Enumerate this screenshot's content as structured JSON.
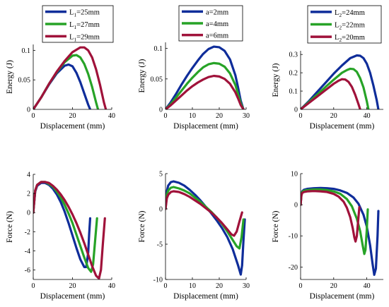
{
  "colors": {
    "blue": "#0f2d9a",
    "green": "#27a327",
    "red": "#a0123a"
  },
  "chart_data": [
    {
      "type": "line",
      "xlabel": "Displacement (mm)",
      "ylabel": "Energy (J)",
      "xlim": [
        0,
        40
      ],
      "ylim": [
        0,
        0.11
      ],
      "xticks": [
        0,
        20,
        40
      ],
      "yticks": [
        0,
        0.05,
        0.1
      ],
      "xtick_labels": [
        "0",
        "20",
        "40"
      ],
      "ytick_labels": [
        "0",
        "0.05",
        "0.1"
      ],
      "legend_position": "top",
      "series": [
        {
          "name": "L1=25mm",
          "legend": {
            "base": "L",
            "sub": "1",
            "rest": "=25mm"
          },
          "color": "blue",
          "x": [
            0,
            4,
            8,
            12,
            16,
            18,
            20,
            22,
            24,
            26,
            28,
            29
          ],
          "y": [
            0,
            0.02,
            0.042,
            0.061,
            0.074,
            0.076,
            0.073,
            0.062,
            0.046,
            0.027,
            0.008,
            0
          ]
        },
        {
          "name": "L1=27mm",
          "legend": {
            "base": "L",
            "sub": "1",
            "rest": "=27mm"
          },
          "color": "green",
          "x": [
            0,
            4,
            8,
            12,
            16,
            20,
            22,
            24,
            26,
            28,
            30,
            32,
            33
          ],
          "y": [
            0,
            0.02,
            0.043,
            0.063,
            0.08,
            0.091,
            0.092,
            0.088,
            0.077,
            0.06,
            0.038,
            0.012,
            0
          ]
        },
        {
          "name": "L1=29mm",
          "legend": {
            "base": "L",
            "sub": "1",
            "rest": "=29mm"
          },
          "color": "red",
          "x": [
            0,
            4,
            8,
            12,
            16,
            20,
            24,
            26,
            28,
            30,
            32,
            34,
            36,
            37
          ],
          "y": [
            0,
            0.02,
            0.043,
            0.064,
            0.082,
            0.097,
            0.105,
            0.105,
            0.1,
            0.088,
            0.068,
            0.042,
            0.012,
            0
          ]
        }
      ]
    },
    {
      "type": "line",
      "xlabel": "Displacement (mm)",
      "ylabel": "Energy (J)",
      "xlim": [
        0,
        30
      ],
      "ylim": [
        0,
        0.11
      ],
      "xticks": [
        0,
        10,
        20,
        30
      ],
      "yticks": [
        0,
        0.05,
        0.1
      ],
      "xtick_labels": [
        "0",
        "10",
        "20",
        "30"
      ],
      "ytick_labels": [
        "0",
        "0.05",
        "0.1"
      ],
      "legend_position": "top",
      "series": [
        {
          "name": "a=2mm",
          "legend": {
            "base": "a=2mm",
            "sub": "",
            "rest": ""
          },
          "color": "blue",
          "x": [
            0,
            2,
            4,
            6,
            8,
            10,
            12,
            14,
            16,
            18,
            20,
            22,
            24,
            26,
            27,
            28,
            29
          ],
          "y": [
            0,
            0.012,
            0.026,
            0.041,
            0.055,
            0.068,
            0.08,
            0.091,
            0.099,
            0.103,
            0.102,
            0.096,
            0.082,
            0.056,
            0.036,
            0.014,
            0
          ]
        },
        {
          "name": "a=4mm",
          "legend": {
            "base": "a=4mm",
            "sub": "",
            "rest": ""
          },
          "color": "green",
          "x": [
            0,
            2,
            4,
            6,
            8,
            10,
            12,
            14,
            16,
            18,
            20,
            22,
            24,
            26,
            27,
            28,
            29
          ],
          "y": [
            0,
            0.009,
            0.02,
            0.031,
            0.042,
            0.052,
            0.061,
            0.069,
            0.074,
            0.076,
            0.075,
            0.07,
            0.059,
            0.04,
            0.025,
            0.01,
            0
          ]
        },
        {
          "name": "a=6mm",
          "legend": {
            "base": "a=6mm",
            "sub": "",
            "rest": ""
          },
          "color": "red",
          "x": [
            0,
            2,
            4,
            6,
            8,
            10,
            12,
            14,
            16,
            18,
            20,
            22,
            24,
            26,
            27,
            28,
            29
          ],
          "y": [
            0,
            0.007,
            0.015,
            0.023,
            0.031,
            0.038,
            0.044,
            0.049,
            0.053,
            0.055,
            0.054,
            0.05,
            0.042,
            0.028,
            0.018,
            0.007,
            0
          ]
        }
      ]
    },
    {
      "type": "line",
      "xlabel": "Displacement (mm)",
      "ylabel": "Energy (J)",
      "xlim": [
        0,
        50
      ],
      "ylim": [
        0,
        0.32
      ],
      "xticks": [
        0,
        20,
        40
      ],
      "yticks": [
        0,
        0.1,
        0.2,
        0.3
      ],
      "xtick_labels": [
        "0",
        "20",
        "40"
      ],
      "ytick_labels": [
        "0",
        "0.1",
        "0.2",
        "0.3"
      ],
      "legend_position": "top",
      "series": [
        {
          "name": "L2=24mm",
          "legend": {
            "base": "L",
            "sub": "2",
            "rest": "=24mm"
          },
          "color": "blue",
          "x": [
            0,
            5,
            10,
            15,
            20,
            25,
            30,
            34,
            36,
            38,
            40,
            42,
            44,
            46,
            47
          ],
          "y": [
            0,
            0.045,
            0.095,
            0.145,
            0.195,
            0.24,
            0.28,
            0.295,
            0.293,
            0.28,
            0.25,
            0.2,
            0.13,
            0.05,
            0
          ]
        },
        {
          "name": "L2=22mm",
          "legend": {
            "base": "L",
            "sub": "2",
            "rest": "=22mm"
          },
          "color": "green",
          "x": [
            0,
            5,
            10,
            15,
            20,
            25,
            28,
            30,
            32,
            34,
            36,
            38,
            40,
            41
          ],
          "y": [
            0,
            0.04,
            0.08,
            0.122,
            0.162,
            0.2,
            0.215,
            0.222,
            0.22,
            0.205,
            0.17,
            0.12,
            0.045,
            0
          ]
        },
        {
          "name": "L2=20mm",
          "legend": {
            "base": "L",
            "sub": "2",
            "rest": "=20mm"
          },
          "color": "red",
          "x": [
            0,
            5,
            10,
            15,
            20,
            23,
            25,
            27,
            29,
            31,
            33,
            35,
            36
          ],
          "y": [
            0,
            0.035,
            0.07,
            0.105,
            0.14,
            0.157,
            0.165,
            0.163,
            0.15,
            0.123,
            0.08,
            0.028,
            0
          ]
        }
      ]
    },
    {
      "type": "line",
      "xlabel": "Displacement (mm)",
      "ylabel": "Force (N)",
      "xlim": [
        0,
        40
      ],
      "ylim": [
        -7,
        4
      ],
      "xticks": [
        0,
        20,
        40
      ],
      "yticks": [
        -6,
        -4,
        -2,
        0,
        2,
        4
      ],
      "xtick_labels": [
        "0",
        "20",
        "40"
      ],
      "ytick_labels": [
        "-6",
        "-4",
        "-2",
        "0",
        "2",
        "4"
      ],
      "series": [
        {
          "name": "L1=25mm",
          "color": "blue",
          "x": [
            0,
            1,
            2,
            4,
            6,
            8,
            10,
            12,
            14,
            16,
            18,
            20,
            22,
            24,
            26,
            27,
            28,
            28.5,
            29
          ],
          "y": [
            0,
            2.2,
            2.8,
            3.1,
            3.1,
            2.9,
            2.5,
            1.9,
            1.1,
            0.1,
            -1.1,
            -2.4,
            -3.7,
            -4.9,
            -5.7,
            -5.7,
            -4.2,
            -2.2,
            -0.6
          ]
        },
        {
          "name": "L1=27mm",
          "color": "green",
          "x": [
            0,
            1,
            2,
            4,
            6,
            8,
            10,
            12,
            14,
            16,
            18,
            20,
            22,
            24,
            26,
            28,
            29.5,
            30.5,
            31.5,
            32.5
          ],
          "y": [
            0,
            2.3,
            2.9,
            3.2,
            3.2,
            3.0,
            2.7,
            2.2,
            1.6,
            0.8,
            -0.1,
            -1.1,
            -2.3,
            -3.5,
            -4.7,
            -5.8,
            -6.2,
            -5.4,
            -3.0,
            -0.6
          ]
        },
        {
          "name": "L1=29mm",
          "color": "red",
          "x": [
            0,
            1,
            2,
            4,
            6,
            8,
            10,
            12,
            14,
            16,
            18,
            20,
            22,
            24,
            26,
            28,
            30,
            32,
            33.5,
            34.5,
            35.5,
            36.5
          ],
          "y": [
            0,
            2.3,
            2.9,
            3.2,
            3.2,
            3.1,
            2.8,
            2.4,
            1.9,
            1.3,
            0.6,
            -0.2,
            -1.1,
            -2.1,
            -3.2,
            -4.4,
            -5.6,
            -6.6,
            -6.9,
            -6.0,
            -3.2,
            -0.6
          ]
        }
      ]
    },
    {
      "type": "line",
      "xlabel": "Displacement (mm)",
      "ylabel": "Force (N)",
      "xlim": [
        0,
        30
      ],
      "ylim": [
        -10,
        5
      ],
      "xticks": [
        0,
        10,
        20,
        30
      ],
      "yticks": [
        -10,
        -5,
        0,
        5
      ],
      "xtick_labels": [
        "0",
        "10",
        "20",
        "30"
      ],
      "ytick_labels": [
        "-10",
        "-5",
        "0",
        "5"
      ],
      "series": [
        {
          "name": "a=2mm",
          "color": "blue",
          "x": [
            0,
            0.5,
            1,
            2,
            3,
            5,
            7,
            9,
            11,
            13,
            15,
            17,
            19,
            21,
            23,
            25,
            27,
            28,
            28.5,
            29,
            29.5
          ],
          "y": [
            0,
            2.5,
            3.3,
            3.8,
            3.9,
            3.7,
            3.3,
            2.7,
            2.0,
            1.2,
            0.3,
            -0.6,
            -1.6,
            -2.7,
            -4.0,
            -5.7,
            -8.0,
            -9.3,
            -8.0,
            -4.5,
            -1.5
          ]
        },
        {
          "name": "a=4mm",
          "color": "green",
          "x": [
            0,
            0.5,
            1,
            2,
            3,
            5,
            7,
            9,
            11,
            13,
            15,
            17,
            19,
            21,
            23,
            25,
            26.5,
            27.5,
            28.3,
            29
          ],
          "y": [
            0,
            2.0,
            2.6,
            3.0,
            3.1,
            2.9,
            2.6,
            2.2,
            1.6,
            1.0,
            0.3,
            -0.4,
            -1.2,
            -2.1,
            -3.2,
            -4.4,
            -5.3,
            -5.6,
            -4.0,
            -1.5
          ]
        },
        {
          "name": "a=6mm",
          "color": "red",
          "x": [
            0,
            0.5,
            1,
            2,
            3,
            5,
            7,
            9,
            11,
            13,
            15,
            17,
            19,
            21,
            23,
            24.5,
            25.5,
            26.5,
            27.5,
            28.5
          ],
          "y": [
            0,
            1.5,
            2.0,
            2.4,
            2.5,
            2.4,
            2.1,
            1.7,
            1.2,
            0.7,
            0.1,
            -0.5,
            -1.2,
            -2.0,
            -2.9,
            -3.6,
            -3.8,
            -3.2,
            -1.8,
            -0.5
          ]
        }
      ]
    },
    {
      "type": "line",
      "xlabel": "Displacement (mm)",
      "ylabel": "Force (N)",
      "xlim": [
        0,
        50
      ],
      "ylim": [
        -24,
        10
      ],
      "xticks": [
        0,
        20,
        40
      ],
      "yticks": [
        -20,
        -10,
        0,
        10
      ],
      "xtick_labels": [
        "0",
        "20",
        "40"
      ],
      "ytick_labels": [
        "-20",
        "-10",
        "0",
        "10"
      ],
      "series": [
        {
          "name": "L2=24mm",
          "color": "blue",
          "x": [
            0,
            0.5,
            1,
            2,
            4,
            8,
            12,
            16,
            20,
            24,
            28,
            32,
            35,
            38,
            40,
            42,
            43.5,
            44.5,
            45.5,
            46.5,
            47
          ],
          "y": [
            0,
            3.5,
            4.3,
            4.8,
            5.1,
            5.3,
            5.4,
            5.3,
            5.1,
            4.6,
            3.8,
            2.3,
            0.3,
            -3.2,
            -7.0,
            -13.0,
            -19.0,
            -22.5,
            -20.5,
            -10.0,
            -2.0
          ]
        },
        {
          "name": "L2=22mm",
          "color": "green",
          "x": [
            0,
            0.5,
            1,
            2,
            4,
            8,
            12,
            16,
            20,
            24,
            28,
            31,
            34,
            36,
            37.5,
            38.5,
            39.2,
            40,
            40.6
          ],
          "y": [
            0,
            3.3,
            4.1,
            4.5,
            4.7,
            4.9,
            4.9,
            4.7,
            4.3,
            3.5,
            1.8,
            -0.5,
            -4.5,
            -8.5,
            -13.0,
            -15.8,
            -14.5,
            -8.0,
            -1.5
          ]
        },
        {
          "name": "L2=20mm",
          "color": "red",
          "x": [
            0,
            0.5,
            1,
            2,
            4,
            8,
            12,
            16,
            20,
            23,
            26,
            28,
            30,
            31.5,
            32.5,
            33.2,
            34,
            34.8,
            35.5
          ],
          "y": [
            0,
            3.0,
            3.8,
            4.1,
            4.3,
            4.4,
            4.3,
            4.1,
            3.5,
            2.6,
            1.0,
            -1.0,
            -4.0,
            -7.5,
            -10.5,
            -11.8,
            -10.0,
            -5.0,
            -0.8
          ]
        }
      ]
    }
  ]
}
